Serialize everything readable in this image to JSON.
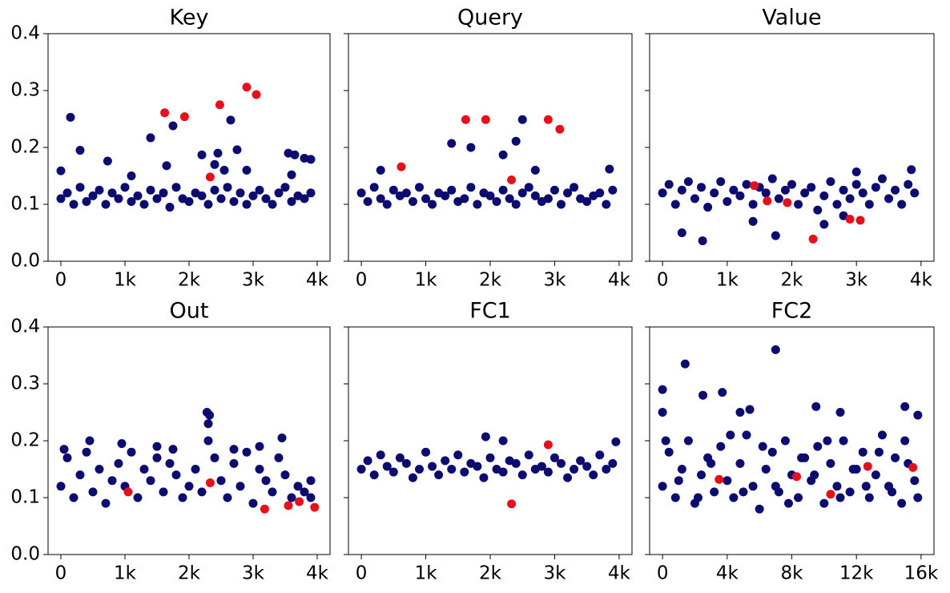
{
  "chart_data": [
    {
      "type": "scatter",
      "title": "Key",
      "xlim": [
        -200,
        4200
      ],
      "ylim": [
        0,
        0.4
      ],
      "xticks": [
        0,
        {
          "value": 1000,
          "label": "1k"
        },
        {
          "value": 2000,
          "label": "2k"
        },
        {
          "value": 3000,
          "label": "3k"
        },
        {
          "value": 4000,
          "label": "4k"
        }
      ],
      "yticks": [
        {
          "value": 0,
          "label": "0.0"
        },
        0.1,
        0.2,
        0.3,
        0.4
      ],
      "series": [
        {
          "color": "#0b0b70",
          "x": [
            0,
            100,
            200,
            300,
            400,
            500,
            600,
            700,
            800,
            900,
            1000,
            1100,
            1200,
            1300,
            1400,
            1500,
            1600,
            1700,
            1800,
            1900,
            2000,
            2100,
            2200,
            2300,
            2400,
            2500,
            2600,
            2700,
            2800,
            2900,
            3000,
            3100,
            3200,
            3300,
            3400,
            3500,
            3600,
            3700,
            3800,
            3900,
            150,
            300,
            730,
            1400,
            1750,
            1650,
            2200,
            2400,
            2450,
            2550,
            2650,
            2750,
            2900,
            3550,
            3650,
            3800,
            3900,
            0,
            3600,
            1100
          ],
          "y": [
            0.11,
            0.12,
            0.1,
            0.13,
            0.105,
            0.115,
            0.125,
            0.1,
            0.12,
            0.11,
            0.13,
            0.105,
            0.115,
            0.1,
            0.125,
            0.11,
            0.12,
            0.095,
            0.13,
            0.11,
            0.105,
            0.12,
            0.115,
            0.1,
            0.125,
            0.11,
            0.13,
            0.105,
            0.12,
            0.1,
            0.115,
            0.125,
            0.11,
            0.1,
            0.12,
            0.13,
            0.105,
            0.115,
            0.11,
            0.12,
            0.253,
            0.195,
            0.176,
            0.217,
            0.238,
            0.168,
            0.187,
            0.17,
            0.19,
            0.16,
            0.248,
            0.196,
            0.16,
            0.19,
            0.187,
            0.181,
            0.179,
            0.159,
            0.152,
            0.15
          ]
        },
        {
          "color": "#e6101c",
          "x": [
            1620,
            1930,
            2480,
            2900,
            3050,
            2330
          ],
          "y": [
            0.261,
            0.254,
            0.275,
            0.306,
            0.293,
            0.148
          ]
        }
      ]
    },
    {
      "type": "scatter",
      "title": "Query",
      "xlim": [
        -200,
        4200
      ],
      "ylim": [
        0,
        0.4
      ],
      "xticks": [
        0,
        {
          "value": 1000,
          "label": "1k"
        },
        {
          "value": 2000,
          "label": "2k"
        },
        {
          "value": 3000,
          "label": "3k"
        },
        {
          "value": 4000,
          "label": "4k"
        }
      ],
      "yticks": [
        0,
        0.1,
        0.2,
        0.3,
        0.4
      ],
      "series": [
        {
          "color": "#0b0b70",
          "x": [
            0,
            100,
            200,
            300,
            400,
            500,
            600,
            700,
            800,
            900,
            1000,
            1100,
            1200,
            1300,
            1400,
            1500,
            1600,
            1700,
            1800,
            1900,
            2000,
            2100,
            2200,
            2300,
            2400,
            2500,
            2600,
            2700,
            2800,
            2900,
            3000,
            3100,
            3200,
            3300,
            3400,
            3500,
            3600,
            3700,
            3800,
            3900,
            1400,
            1700,
            2200,
            2400,
            2500,
            2700,
            3850,
            300
          ],
          "y": [
            0.12,
            0.105,
            0.13,
            0.11,
            0.1,
            0.125,
            0.115,
            0.12,
            0.105,
            0.13,
            0.11,
            0.1,
            0.12,
            0.115,
            0.125,
            0.105,
            0.11,
            0.13,
            0.1,
            0.12,
            0.115,
            0.105,
            0.125,
            0.11,
            0.1,
            0.12,
            0.13,
            0.115,
            0.105,
            0.11,
            0.125,
            0.1,
            0.12,
            0.13,
            0.11,
            0.105,
            0.115,
            0.12,
            0.1,
            0.125,
            0.207,
            0.2,
            0.187,
            0.211,
            0.249,
            0.16,
            0.162,
            0.16
          ]
        },
        {
          "color": "#e6101c",
          "x": [
            620,
            1620,
            1930,
            2900,
            3080,
            2330
          ],
          "y": [
            0.166,
            0.249,
            0.249,
            0.249,
            0.232,
            0.143
          ]
        }
      ]
    },
    {
      "type": "scatter",
      "title": "Value",
      "xlim": [
        -200,
        4200
      ],
      "ylim": [
        0,
        0.4
      ],
      "xticks": [
        0,
        {
          "value": 1000,
          "label": "1k"
        },
        {
          "value": 2000,
          "label": "2k"
        },
        {
          "value": 3000,
          "label": "3k"
        },
        {
          "value": 4000,
          "label": "4k"
        }
      ],
      "yticks": [
        0,
        0.1,
        0.2,
        0.3,
        0.4
      ],
      "series": [
        {
          "color": "#0b0b70",
          "x": [
            0,
            100,
            200,
            300,
            400,
            500,
            600,
            700,
            800,
            900,
            1000,
            1100,
            1200,
            1300,
            1400,
            1500,
            1600,
            1700,
            1800,
            1900,
            2000,
            2100,
            2200,
            2300,
            2400,
            2500,
            2600,
            2700,
            2800,
            2900,
            3000,
            3100,
            3200,
            3300,
            3400,
            3500,
            3600,
            3700,
            3800,
            3900,
            300,
            620,
            1750,
            1400,
            2500,
            3000,
            3850,
            2800
          ],
          "y": [
            0.12,
            0.135,
            0.1,
            0.125,
            0.14,
            0.11,
            0.13,
            0.095,
            0.12,
            0.14,
            0.105,
            0.125,
            0.115,
            0.135,
            0.1,
            0.13,
            0.12,
            0.145,
            0.11,
            0.125,
            0.135,
            0.1,
            0.12,
            0.13,
            0.09,
            0.115,
            0.14,
            0.1,
            0.125,
            0.11,
            0.135,
            0.12,
            0.1,
            0.13,
            0.145,
            0.11,
            0.125,
            0.1,
            0.135,
            0.12,
            0.05,
            0.036,
            0.045,
            0.07,
            0.065,
            0.157,
            0.161,
            0.08
          ]
        },
        {
          "color": "#e6101c",
          "x": [
            1420,
            1620,
            1930,
            2330,
            2900,
            3060
          ],
          "y": [
            0.133,
            0.106,
            0.103,
            0.039,
            0.074,
            0.072
          ]
        }
      ]
    },
    {
      "type": "scatter",
      "title": "Out",
      "xlim": [
        -200,
        4200
      ],
      "ylim": [
        0,
        0.4
      ],
      "xticks": [
        0,
        {
          "value": 1000,
          "label": "1k"
        },
        {
          "value": 2000,
          "label": "2k"
        },
        {
          "value": 3000,
          "label": "3k"
        },
        {
          "value": 4000,
          "label": "4k"
        }
      ],
      "yticks": [
        {
          "value": 0,
          "label": "0.0"
        },
        0.1,
        0.2,
        0.3,
        0.4
      ],
      "series": [
        {
          "color": "#0b0b70",
          "x": [
            0,
            100,
            200,
            300,
            400,
            500,
            600,
            700,
            800,
            900,
            1000,
            1100,
            1200,
            1300,
            1400,
            1500,
            1600,
            1700,
            1800,
            1900,
            2000,
            2100,
            2200,
            2300,
            2400,
            2500,
            2600,
            2700,
            2800,
            2900,
            3000,
            3100,
            3200,
            3300,
            3400,
            3500,
            3600,
            3700,
            3800,
            3900,
            2280,
            2320,
            2300,
            450,
            3450,
            1500,
            50,
            950,
            1750,
            2700,
            3100,
            3900
          ],
          "y": [
            0.12,
            0.17,
            0.1,
            0.14,
            0.18,
            0.11,
            0.15,
            0.09,
            0.13,
            0.16,
            0.12,
            0.18,
            0.1,
            0.15,
            0.13,
            0.17,
            0.11,
            0.16,
            0.14,
            0.1,
            0.12,
            0.15,
            0.11,
            0.2,
            0.17,
            0.13,
            0.1,
            0.16,
            0.12,
            0.18,
            0.09,
            0.15,
            0.13,
            0.11,
            0.17,
            0.14,
            0.1,
            0.12,
            0.11,
            0.1,
            0.25,
            0.245,
            0.23,
            0.2,
            0.205,
            0.19,
            0.185,
            0.195,
            0.185,
            0.185,
            0.19,
            0.13
          ]
        },
        {
          "color": "#e6101c",
          "x": [
            1050,
            2330,
            3180,
            3550,
            3720,
            3960
          ],
          "y": [
            0.11,
            0.126,
            0.08,
            0.086,
            0.093,
            0.083
          ]
        }
      ]
    },
    {
      "type": "scatter",
      "title": "FC1",
      "xlim": [
        -200,
        4200
      ],
      "ylim": [
        0,
        0.4
      ],
      "xticks": [
        0,
        {
          "value": 1000,
          "label": "1k"
        },
        {
          "value": 2000,
          "label": "2k"
        },
        {
          "value": 3000,
          "label": "3k"
        },
        {
          "value": 4000,
          "label": "4k"
        }
      ],
      "yticks": [
        0,
        0.1,
        0.2,
        0.3,
        0.4
      ],
      "series": [
        {
          "color": "#0b0b70",
          "x": [
            0,
            100,
            200,
            300,
            400,
            500,
            600,
            700,
            800,
            900,
            1000,
            1100,
            1200,
            1300,
            1400,
            1500,
            1600,
            1700,
            1800,
            1900,
            2000,
            2100,
            2200,
            2300,
            2400,
            2500,
            2600,
            2700,
            2800,
            2900,
            3000,
            3100,
            3200,
            3300,
            3400,
            3500,
            3600,
            3700,
            3800,
            3900,
            1930,
            2200,
            3950
          ],
          "y": [
            0.15,
            0.165,
            0.14,
            0.175,
            0.155,
            0.145,
            0.17,
            0.16,
            0.135,
            0.15,
            0.18,
            0.155,
            0.14,
            0.165,
            0.15,
            0.175,
            0.145,
            0.16,
            0.155,
            0.135,
            0.17,
            0.15,
            0.145,
            0.165,
            0.16,
            0.14,
            0.175,
            0.15,
            0.155,
            0.145,
            0.17,
            0.16,
            0.135,
            0.15,
            0.165,
            0.155,
            0.14,
            0.175,
            0.15,
            0.16,
            0.207,
            0.2,
            0.198
          ]
        },
        {
          "color": "#e6101c",
          "x": [
            2900,
            2330
          ],
          "y": [
            0.193,
            0.089
          ]
        }
      ]
    },
    {
      "type": "scatter",
      "title": "FC2",
      "xlim": [
        -800,
        16800
      ],
      "ylim": [
        0,
        0.4
      ],
      "xticks": [
        0,
        {
          "value": 4000,
          "label": "4k"
        },
        {
          "value": 8000,
          "label": "8k"
        },
        {
          "value": 12000,
          "label": "12k"
        },
        {
          "value": 16000,
          "label": "16k"
        }
      ],
      "yticks": [
        0,
        0.1,
        0.2,
        0.3,
        0.4
      ],
      "series": [
        {
          "color": "#0b0b70",
          "x": [
            0,
            400,
            800,
            1200,
            1600,
            2000,
            2400,
            2800,
            3200,
            3600,
            4000,
            4400,
            4800,
            5200,
            5600,
            6000,
            6400,
            6800,
            7200,
            7600,
            8000,
            8400,
            8800,
            9200,
            9600,
            10000,
            10400,
            10800,
            11200,
            11600,
            12000,
            12400,
            12800,
            13200,
            13600,
            14000,
            14400,
            14800,
            15200,
            15600,
            200,
            1000,
            2200,
            3000,
            4200,
            5000,
            6200,
            7000,
            7800,
            8600,
            9400,
            10200,
            11000,
            11800,
            12600,
            13400,
            14200,
            15000,
            15800,
            7000,
            1400,
            0,
            3700,
            2500,
            0,
            5400,
            9500,
            15000,
            15800,
            4800,
            11000
          ],
          "y": [
            0.12,
            0.18,
            0.1,
            0.15,
            0.2,
            0.09,
            0.14,
            0.17,
            0.11,
            0.19,
            0.13,
            0.1,
            0.16,
            0.21,
            0.12,
            0.08,
            0.15,
            0.18,
            0.11,
            0.2,
            0.14,
            0.1,
            0.17,
            0.13,
            0.19,
            0.09,
            0.16,
            0.12,
            0.2,
            0.11,
            0.15,
            0.18,
            0.1,
            0.14,
            0.21,
            0.12,
            0.17,
            0.09,
            0.16,
            0.13,
            0.2,
            0.13,
            0.1,
            0.16,
            0.21,
            0.11,
            0.19,
            0.12,
            0.09,
            0.17,
            0.14,
            0.2,
            0.1,
            0.15,
            0.12,
            0.18,
            0.11,
            0.2,
            0.1,
            0.36,
            0.335,
            0.29,
            0.285,
            0.28,
            0.25,
            0.255,
            0.26,
            0.26,
            0.245,
            0.25,
            0.25
          ]
        },
        {
          "color": "#e6101c",
          "x": [
            3500,
            8300,
            10400,
            12700,
            15500
          ],
          "y": [
            0.132,
            0.137,
            0.106,
            0.155,
            0.153
          ]
        }
      ]
    }
  ]
}
